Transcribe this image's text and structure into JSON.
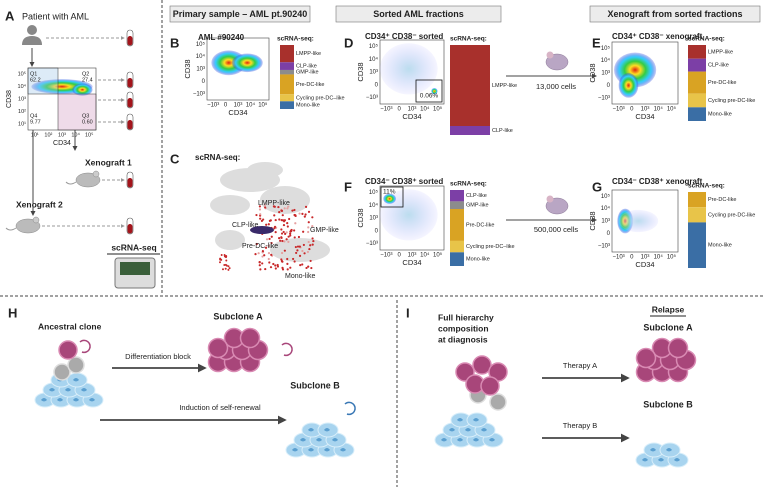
{
  "panel_a": {
    "letter": "A",
    "patient": "Patient with AML",
    "q1": "Q1",
    "q1_value": "62.2",
    "q2": "Q2",
    "q2_value": "27.4",
    "q4": "Q4",
    "q4_value": "9.77",
    "q3": "Q3",
    "q3_value": "0.60",
    "xenograft_1": "Xenograft 1",
    "xenograft_2": "Xenograft 2",
    "scrna_seq": "scRNA-seq"
  },
  "headers": [
    "Primary sample – AML pt.90240",
    "Sorted AML fractions",
    "Xenograft from sorted fractions"
  ],
  "flow_plots": [
    {
      "x_label": "CD34",
      "y_label": "CD38",
      "x_ticks": [
        "10¹",
        "10²",
        "10³",
        "10⁴",
        "10⁵"
      ],
      "y_ticks": [
        "10⁵",
        "10⁴",
        "10³",
        "10²",
        "10¹"
      ]
    },
    {
      "x_label": "CD34",
      "y_label": "CD38",
      "x_ticks": [
        "−10³",
        "0",
        "10³",
        "10⁴",
        "10⁵"
      ],
      "y_ticks": [
        "10⁵",
        "10⁴",
        "10³",
        "0",
        "−10³"
      ]
    },
    {
      "x_label": "CD34",
      "y_label": "CD38",
      "x_ticks": [
        "−10³",
        "0",
        "10³",
        "10⁴",
        "10⁵"
      ],
      "y_ticks": [
        "10⁵",
        "10⁴",
        "10³",
        "0",
        "−10³"
      ]
    },
    {
      "x_label": "CD34",
      "y_label": "CD38",
      "x_ticks": [
        "−10³",
        "0",
        "10³",
        "10⁴",
        "10⁵"
      ],
      "y_ticks": [
        "10⁵",
        "10⁴",
        "10³",
        "0",
        "−10³"
      ]
    },
    {
      "x_label": "CD34",
      "y_label": "CD38",
      "x_ticks": [
        "−10³",
        "0",
        "10³",
        "10⁴",
        "10⁵"
      ],
      "y_ticks": [
        "10⁵",
        "10⁴",
        "10³",
        "0",
        "−10³"
      ]
    },
    {
      "x_label": "CD34",
      "y_label": "CD38",
      "x_ticks": [
        "−10³",
        "0",
        "10³",
        "10⁴",
        "10⁵"
      ],
      "y_ticks": [
        "10⁵",
        "10⁴",
        "10³",
        "0",
        "−10³"
      ]
    }
  ],
  "panel_b": {
    "letter": "B",
    "title": "AML #90240",
    "scrna_label": "scRNA-seq:",
    "bar_labels": [
      "LMPP-like",
      "CLP-like",
      "GMP-like",
      "Pre-DC-like",
      "Cycling pre-DC–like",
      "Mono-like"
    ]
  },
  "panel_c": {
    "letter": "C",
    "title": "scRNA-seq:",
    "clusters": [
      "LMPP-like",
      "CLP-like",
      "GMP-like",
      "Pre-DC-like",
      "Mono-like"
    ]
  },
  "panel_d": {
    "letter": "D",
    "title": "CD34⁺ CD38⁻ sorted",
    "gate": "0.06%",
    "scrna_label": "scRNA-seq:",
    "bar_labels": [
      "LMPP-like",
      "CLP-like"
    ],
    "cells": "13,000 cells"
  },
  "panel_e": {
    "letter": "E",
    "title": "CD34⁺ CD38⁻ xenograft",
    "scrna_label": "scRNA-seq:",
    "bar_labels": [
      "LMPP-like",
      "CLP-like",
      "Pre-DC-like",
      "Cycling pre-DC-like",
      "Mono-like"
    ]
  },
  "panel_f": {
    "letter": "F",
    "title": "CD34⁻ CD38⁺ sorted",
    "gate": "11%",
    "scrna_label": "scRNA-seq:",
    "bar_labels": [
      "CLP-like",
      "GMP-like",
      "Pre-DC-like",
      "Cycling pre-DC–like",
      "Mono-like"
    ],
    "cells": "500,000 cells"
  },
  "panel_g": {
    "letter": "G",
    "title": "CD34⁻ CD38⁺ xenograft",
    "scrna_label": "scRNA-seq:",
    "bar_labels": [
      "Pre-DC-like",
      "Cycling pre-DC-like",
      "Mono-like"
    ]
  },
  "panel_h": {
    "letter": "H",
    "ancestral": "Ancestral clone",
    "subclone_a": "Subclone A",
    "block": "Differentiation block",
    "subclone_b": "Subclone B",
    "renewal": "Induction of self-renewal"
  },
  "panel_i": {
    "letter": "I",
    "diagnosis": [
      "Full hierarchy",
      "composition",
      "at diagnosis"
    ],
    "relapse": "Relapse",
    "subclone_a": "Subclone A",
    "therapy_a": "Therapy A",
    "subclone_b": "Subclone B",
    "therapy_b": "Therapy B"
  }
}
